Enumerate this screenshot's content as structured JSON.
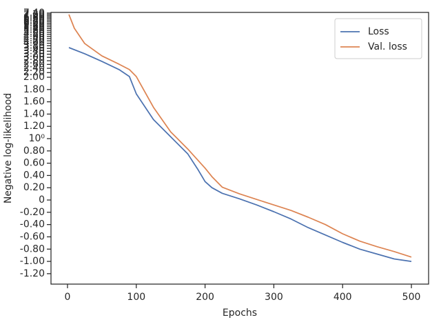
{
  "chart_data": {
    "type": "line",
    "xlabel": "Epochs",
    "ylabel": "Negative log-likelihood",
    "xlim": [
      -24,
      525
    ],
    "xticks": [
      0,
      100,
      200,
      300,
      400,
      500
    ],
    "ylim": [
      -1.37,
      7.5
    ],
    "yscale": "symlog",
    "linthresh": 2,
    "yticks": [
      {
        "value": -1.2,
        "label": "-1.20"
      },
      {
        "value": -1.0,
        "label": "-1.00"
      },
      {
        "value": -0.8,
        "label": "-0.80"
      },
      {
        "value": -0.6,
        "label": "-0.60"
      },
      {
        "value": -0.4,
        "label": "-0.40"
      },
      {
        "value": -0.2,
        "label": "-0.20"
      },
      0,
      {
        "value": 0.2,
        "label": "0.20"
      },
      {
        "value": 0.4,
        "label": "0.40"
      },
      {
        "value": 0.6,
        "label": "0.60"
      },
      {
        "value": 0.8,
        "label": "0.80"
      },
      {
        "value": 1,
        "label": "10⁰"
      },
      {
        "value": 1.2,
        "label": "1.20"
      },
      {
        "value": 1.4,
        "label": "1.40"
      },
      {
        "value": 1.6,
        "label": "1.60"
      },
      {
        "value": 1.8,
        "label": "1.80"
      },
      {
        "value": 2.0,
        "label": "2.00"
      },
      {
        "value": 2.2,
        "label": "2.20"
      },
      {
        "value": 2.4,
        "label": "2.40"
      },
      {
        "value": 2.6,
        "label": "2.60"
      },
      {
        "value": 2.8,
        "label": "2.80"
      },
      {
        "value": 3.0,
        "label": "3.00"
      },
      {
        "value": 3.2,
        "label": "3.20"
      },
      {
        "value": 3.4,
        "label": "3.40"
      },
      {
        "value": 3.6,
        "label": "3.60"
      },
      {
        "value": 3.8,
        "label": "3.80"
      },
      {
        "value": 4.0,
        "label": "4.00"
      },
      {
        "value": 4.2,
        "label": "4.20"
      },
      {
        "value": 4.4,
        "label": "4.40"
      },
      {
        "value": 4.6,
        "label": "4.60"
      },
      {
        "value": 4.8,
        "label": "4.80"
      },
      {
        "value": 5.0,
        "label": "5.00"
      },
      {
        "value": 5.2,
        "label": "5.20"
      },
      {
        "value": 5.4,
        "label": "5.40"
      },
      {
        "value": 5.6,
        "label": "5.60"
      },
      {
        "value": 5.8,
        "label": "5.80"
      },
      {
        "value": 6.0,
        "label": "6.00"
      },
      {
        "value": 6.2,
        "label": "6.20"
      },
      {
        "value": 6.4,
        "label": "6.40"
      },
      {
        "value": 6.6,
        "label": "6.60"
      },
      {
        "value": 6.8,
        "label": "6.80"
      },
      {
        "value": 7.0,
        "label": "7.00"
      },
      {
        "value": 7.2,
        "label": "7.20"
      },
      {
        "value": 7.4,
        "label": "7.40"
      }
    ],
    "legend": "upper right",
    "series": [
      {
        "name": "Loss",
        "color": "#4c72b0",
        "x": [
          2,
          25,
          50,
          75,
          90,
          100,
          125,
          150,
          175,
          190,
          200,
          210,
          225,
          250,
          275,
          300,
          325,
          350,
          375,
          400,
          425,
          450,
          475,
          500
        ],
        "values": [
          3.66,
          3.23,
          2.76,
          2.34,
          2.03,
          1.73,
          1.31,
          1.03,
          0.75,
          0.49,
          0.3,
          0.2,
          0.11,
          0.02,
          -0.08,
          -0.19,
          -0.31,
          -0.45,
          -0.57,
          -0.69,
          -0.8,
          -0.88,
          -0.96,
          -1.0
        ]
      },
      {
        "name": "Val. loss",
        "color": "#dd8452",
        "x": [
          2,
          10,
          25,
          50,
          75,
          90,
          100,
          125,
          150,
          175,
          200,
          210,
          225,
          250,
          275,
          300,
          325,
          350,
          375,
          400,
          425,
          450,
          475,
          500
        ],
        "values": [
          7.19,
          5.43,
          3.98,
          3.09,
          2.61,
          2.34,
          2.03,
          1.51,
          1.11,
          0.83,
          0.52,
          0.38,
          0.21,
          0.1,
          0.01,
          -0.08,
          -0.17,
          -0.28,
          -0.4,
          -0.55,
          -0.67,
          -0.76,
          -0.84,
          -0.93
        ]
      }
    ]
  }
}
